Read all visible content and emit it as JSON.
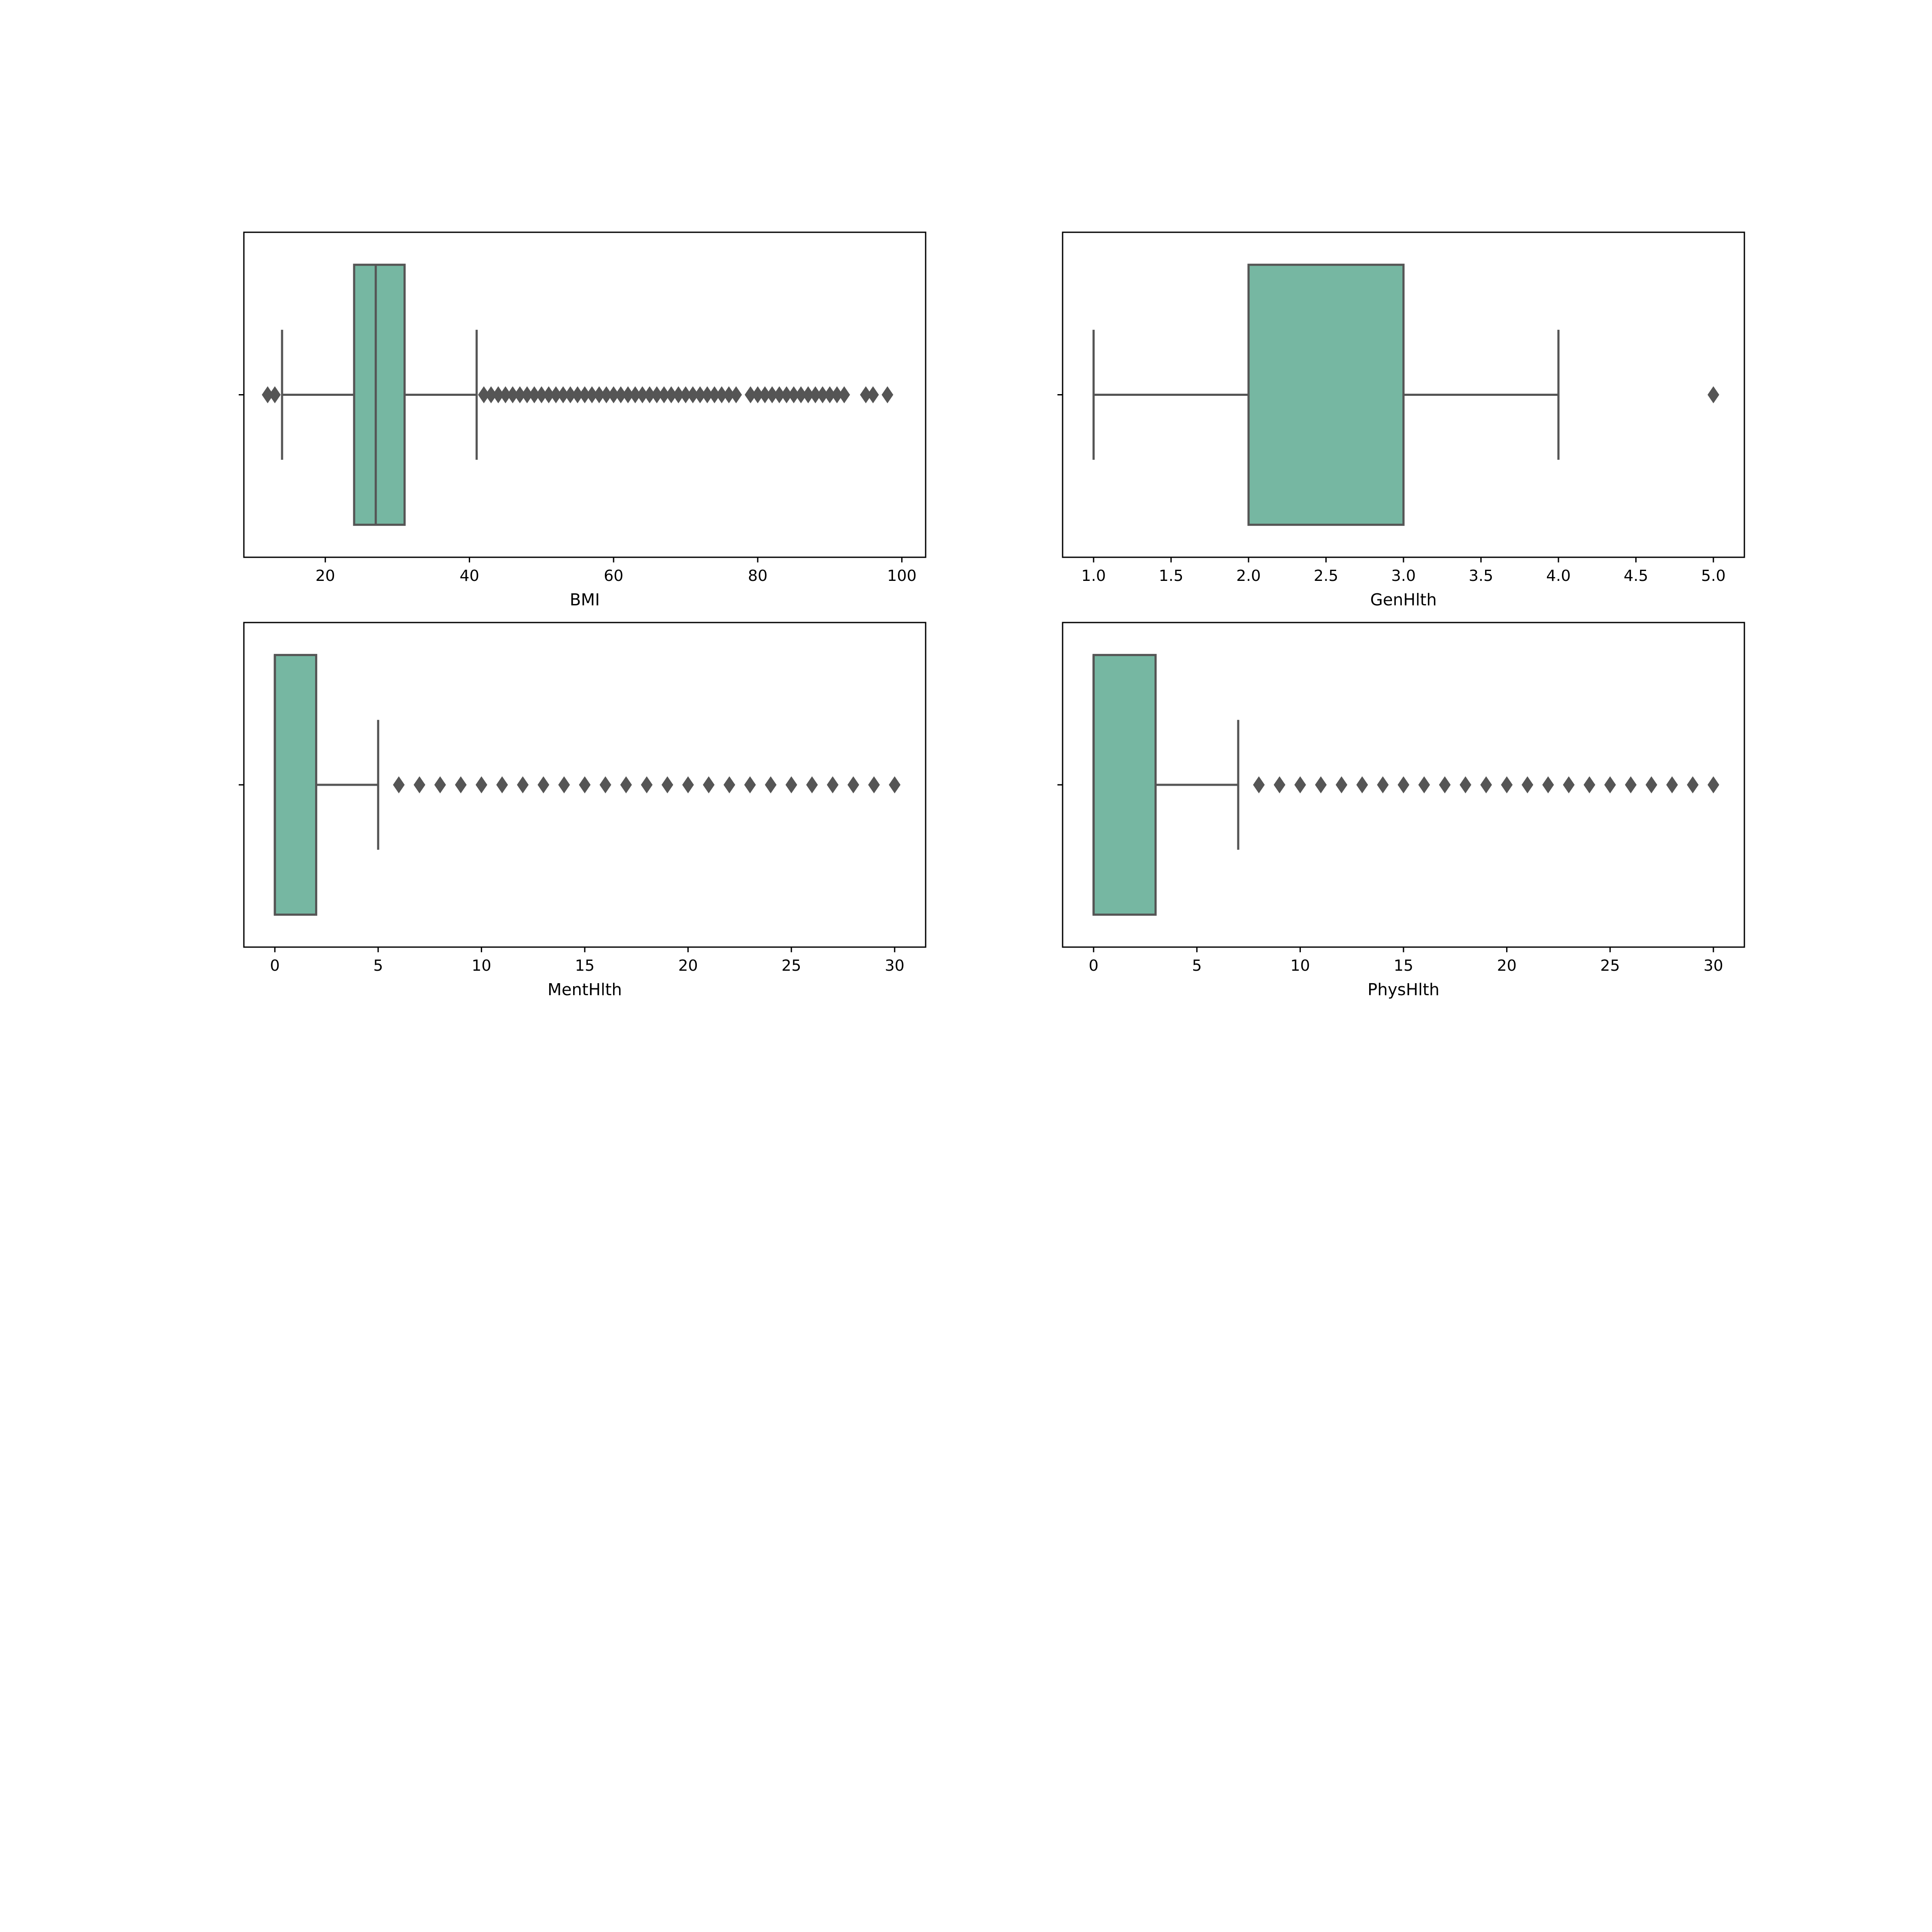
{
  "colors": {
    "box_fill": "#76b7a2",
    "line": "#555555",
    "frame": "#000000"
  },
  "chart_data": [
    {
      "type": "box",
      "orientation": "horizontal",
      "xlabel": "BMI",
      "xlim": [
        8.7,
        103.3
      ],
      "xticks": [
        20,
        40,
        60,
        80,
        100
      ],
      "xtick_labels": [
        "20",
        "40",
        "60",
        "80",
        "100"
      ],
      "whisker_low": 14,
      "q1": 24,
      "median": 27,
      "q3": 31,
      "whisker_high": 41,
      "outliers": [
        12,
        13,
        42,
        43,
        44,
        45,
        46,
        47,
        48,
        49,
        50,
        51,
        52,
        53,
        54,
        55,
        56,
        57,
        58,
        59,
        60,
        61,
        62,
        63,
        64,
        65,
        66,
        67,
        68,
        69,
        70,
        71,
        72,
        73,
        74,
        75,
        76,
        77,
        79,
        80,
        81,
        82,
        83,
        84,
        85,
        86,
        87,
        88,
        89,
        90,
        91,
        92,
        95,
        96,
        98
      ]
    },
    {
      "type": "box",
      "orientation": "horizontal",
      "xlabel": "GenHlth",
      "xlim": [
        0.8,
        5.2
      ],
      "xticks": [
        1.0,
        1.5,
        2.0,
        2.5,
        3.0,
        3.5,
        4.0,
        4.5,
        5.0
      ],
      "xtick_labels": [
        "1.0",
        "1.5",
        "2.0",
        "2.5",
        "3.0",
        "3.5",
        "4.0",
        "4.5",
        "5.0"
      ],
      "whisker_low": 1,
      "q1": 2,
      "median": 3,
      "q3": 3,
      "whisker_high": 4,
      "outliers": [
        5
      ]
    },
    {
      "type": "box",
      "orientation": "horizontal",
      "xlabel": "MentHlth",
      "xlim": [
        -1.5,
        31.5
      ],
      "xticks": [
        0,
        5,
        10,
        15,
        20,
        25,
        30
      ],
      "xtick_labels": [
        "0",
        "5",
        "10",
        "15",
        "20",
        "25",
        "30"
      ],
      "whisker_low": 0,
      "q1": 0,
      "median": 0,
      "q3": 2,
      "whisker_high": 5,
      "outliers": [
        6,
        7,
        8,
        9,
        10,
        11,
        12,
        13,
        14,
        15,
        16,
        17,
        18,
        19,
        20,
        21,
        22,
        23,
        24,
        25,
        26,
        27,
        28,
        29,
        30
      ]
    },
    {
      "type": "box",
      "orientation": "horizontal",
      "xlabel": "PhysHlth",
      "xlim": [
        -1.5,
        31.5
      ],
      "xticks": [
        0,
        5,
        10,
        15,
        20,
        25,
        30
      ],
      "xtick_labels": [
        "0",
        "5",
        "10",
        "15",
        "20",
        "25",
        "30"
      ],
      "whisker_low": 0,
      "q1": 0,
      "median": 0,
      "q3": 3,
      "whisker_high": 7,
      "outliers": [
        8,
        9,
        10,
        11,
        12,
        13,
        14,
        15,
        16,
        17,
        18,
        19,
        20,
        21,
        22,
        23,
        24,
        25,
        26,
        27,
        28,
        29,
        30
      ]
    }
  ]
}
